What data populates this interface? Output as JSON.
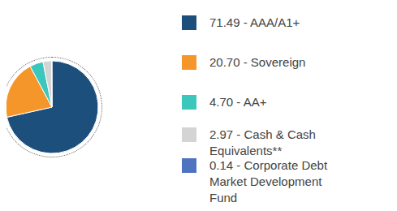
{
  "chart_data": {
    "type": "pie",
    "categories": [
      "71.49 - AAA/A1+",
      "20.70 - Sovereign",
      "4.70 - AA+",
      "2.97 - Cash & Cash Equivalents**",
      "0.14 - Corporate Debt Market Development Fund"
    ],
    "values": [
      71.49,
      20.7,
      4.7,
      2.97,
      0.14
    ],
    "colors": [
      "#1d4f7c",
      "#f5962a",
      "#3cc7bd",
      "#d4d4d4",
      "#4f74bf"
    ],
    "legend": "right"
  }
}
